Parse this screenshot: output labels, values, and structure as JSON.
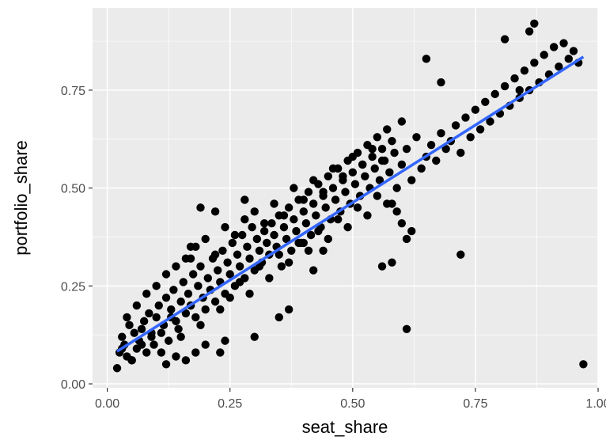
{
  "chart_data": {
    "type": "scatter",
    "title": "",
    "xlabel": "seat_share",
    "ylabel": "portfolio_share",
    "xlim": [
      -0.03,
      1.0
    ],
    "ylim": [
      -0.01,
      0.96
    ],
    "x_ticks": [
      0.0,
      0.25,
      0.5,
      0.75,
      1.0
    ],
    "x_tick_labels": [
      "0.00",
      "0.25",
      "0.50",
      "0.75",
      "1.00"
    ],
    "y_ticks": [
      0.0,
      0.25,
      0.5,
      0.75
    ],
    "y_tick_labels": [
      "0.00",
      "0.25",
      "0.50",
      "0.75"
    ],
    "grid": true,
    "legend": "none",
    "colors": {
      "panel": "#ebebeb",
      "grid": "#ffffff",
      "points": "#000000",
      "fit_line": "#3366ff"
    },
    "fit_line": {
      "x": [
        0.02,
        0.97
      ],
      "y": [
        0.083,
        0.835
      ]
    },
    "series": [
      {
        "x": [
          0.02,
          0.025,
          0.03,
          0.035,
          0.04,
          0.045,
          0.05,
          0.055,
          0.06,
          0.065,
          0.07,
          0.075,
          0.08,
          0.085,
          0.09,
          0.095,
          0.1,
          0.105,
          0.11,
          0.115,
          0.12,
          0.125,
          0.13,
          0.135,
          0.14,
          0.145,
          0.15,
          0.155,
          0.16,
          0.165,
          0.17,
          0.175,
          0.18,
          0.185,
          0.19,
          0.195,
          0.2,
          0.205,
          0.21,
          0.215,
          0.22,
          0.225,
          0.23,
          0.235,
          0.24,
          0.245,
          0.25,
          0.255,
          0.26,
          0.265,
          0.27,
          0.275,
          0.28,
          0.285,
          0.29,
          0.295,
          0.3,
          0.305,
          0.31,
          0.315,
          0.32,
          0.325,
          0.33,
          0.335,
          0.34,
          0.345,
          0.35,
          0.355,
          0.36,
          0.365,
          0.37,
          0.375,
          0.38,
          0.385,
          0.39,
          0.395,
          0.4,
          0.405,
          0.41,
          0.415,
          0.42,
          0.425,
          0.43,
          0.435,
          0.44,
          0.445,
          0.45,
          0.455,
          0.46,
          0.465,
          0.47,
          0.475,
          0.48,
          0.485,
          0.49,
          0.495,
          0.5,
          0.505,
          0.51,
          0.515,
          0.52,
          0.525,
          0.53,
          0.535,
          0.54,
          0.545,
          0.55,
          0.555,
          0.56,
          0.565,
          0.57,
          0.575,
          0.58,
          0.585,
          0.59,
          0.6,
          0.61,
          0.62,
          0.63,
          0.64,
          0.65,
          0.66,
          0.67,
          0.68,
          0.69,
          0.7,
          0.71,
          0.72,
          0.73,
          0.74,
          0.75,
          0.76,
          0.77,
          0.78,
          0.79,
          0.8,
          0.81,
          0.82,
          0.83,
          0.84,
          0.85,
          0.86,
          0.87,
          0.88,
          0.89,
          0.9,
          0.91,
          0.92,
          0.93,
          0.94,
          0.95,
          0.96,
          0.97,
          0.03,
          0.05,
          0.07,
          0.09,
          0.11,
          0.13,
          0.15,
          0.17,
          0.19,
          0.21,
          0.23,
          0.25,
          0.27,
          0.29,
          0.31,
          0.33,
          0.35,
          0.37,
          0.39,
          0.41,
          0.43,
          0.45,
          0.47,
          0.49,
          0.51,
          0.53,
          0.55,
          0.57,
          0.59,
          0.61,
          0.04,
          0.06,
          0.08,
          0.1,
          0.12,
          0.14,
          0.16,
          0.18,
          0.2,
          0.22,
          0.24,
          0.26,
          0.28,
          0.3,
          0.32,
          0.34,
          0.36,
          0.38,
          0.4,
          0.42,
          0.44,
          0.46,
          0.48,
          0.5,
          0.52,
          0.54,
          0.56,
          0.58,
          0.6,
          0.28,
          0.22,
          0.19,
          0.35,
          0.14,
          0.12,
          0.16,
          0.2,
          0.65,
          0.72,
          0.81,
          0.84,
          0.86,
          0.87,
          0.68,
          0.62,
          0.61,
          0.6,
          0.58,
          0.56,
          0.4,
          0.42,
          0.44,
          0.18,
          0.24,
          0.17,
          0.23,
          0.3,
          0.37,
          0.17
        ],
        "y": [
          0.04,
          0.08,
          0.12,
          0.1,
          0.07,
          0.15,
          0.06,
          0.13,
          0.09,
          0.11,
          0.14,
          0.16,
          0.08,
          0.18,
          0.12,
          0.1,
          0.17,
          0.2,
          0.13,
          0.15,
          0.22,
          0.11,
          0.19,
          0.24,
          0.16,
          0.14,
          0.21,
          0.26,
          0.18,
          0.23,
          0.2,
          0.28,
          0.17,
          0.25,
          0.3,
          0.22,
          0.19,
          0.27,
          0.24,
          0.32,
          0.21,
          0.29,
          0.26,
          0.34,
          0.23,
          0.31,
          0.28,
          0.36,
          0.25,
          0.33,
          0.3,
          0.38,
          0.27,
          0.35,
          0.32,
          0.4,
          0.29,
          0.37,
          0.34,
          0.31,
          0.39,
          0.36,
          0.33,
          0.41,
          0.38,
          0.35,
          0.43,
          0.3,
          0.4,
          0.37,
          0.45,
          0.34,
          0.42,
          0.39,
          0.47,
          0.36,
          0.44,
          0.41,
          0.49,
          0.38,
          0.46,
          0.43,
          0.51,
          0.4,
          0.48,
          0.45,
          0.53,
          0.42,
          0.5,
          0.47,
          0.55,
          0.44,
          0.52,
          0.49,
          0.57,
          0.46,
          0.54,
          0.51,
          0.59,
          0.48,
          0.56,
          0.53,
          0.61,
          0.5,
          0.58,
          0.55,
          0.63,
          0.52,
          0.6,
          0.57,
          0.65,
          0.54,
          0.46,
          0.59,
          0.44,
          0.56,
          0.6,
          0.52,
          0.63,
          0.55,
          0.58,
          0.61,
          0.57,
          0.64,
          0.6,
          0.62,
          0.66,
          0.59,
          0.68,
          0.63,
          0.7,
          0.65,
          0.72,
          0.67,
          0.74,
          0.69,
          0.76,
          0.71,
          0.78,
          0.73,
          0.8,
          0.75,
          0.82,
          0.77,
          0.84,
          0.79,
          0.86,
          0.81,
          0.87,
          0.83,
          0.85,
          0.82,
          0.05,
          0.09,
          0.06,
          0.1,
          0.13,
          0.08,
          0.17,
          0.12,
          0.2,
          0.15,
          0.24,
          0.19,
          0.22,
          0.26,
          0.23,
          0.3,
          0.27,
          0.33,
          0.31,
          0.36,
          0.34,
          0.39,
          0.37,
          0.42,
          0.4,
          0.45,
          0.43,
          0.48,
          0.46,
          0.5,
          0.14,
          0.17,
          0.2,
          0.23,
          0.25,
          0.28,
          0.3,
          0.32,
          0.35,
          0.37,
          0.33,
          0.4,
          0.38,
          0.42,
          0.44,
          0.41,
          0.46,
          0.43,
          0.5,
          0.47,
          0.52,
          0.49,
          0.55,
          0.53,
          0.58,
          0.56,
          0.6,
          0.57,
          0.62,
          0.67,
          0.47,
          0.44,
          0.45,
          0.17,
          0.07,
          0.05,
          0.06,
          0.1,
          0.83,
          0.33,
          0.88,
          0.75,
          0.9,
          0.92,
          0.77,
          0.39,
          0.37,
          0.41,
          0.31,
          0.3,
          0.36,
          0.29,
          0.34,
          0.08,
          0.11,
          0.35,
          0.08,
          0.12,
          0.19,
          0.32
        ]
      }
    ]
  }
}
